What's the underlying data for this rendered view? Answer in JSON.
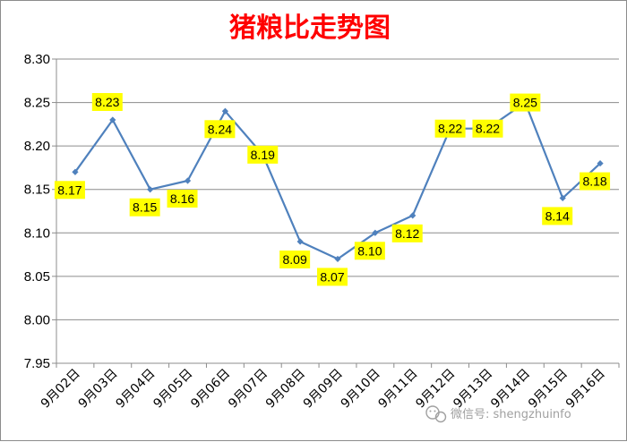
{
  "chart_data": {
    "type": "line",
    "title": "猪粮比走势图",
    "categories": [
      "9月02日",
      "9月03日",
      "9月04日",
      "9月05日",
      "9月06日",
      "9月07日",
      "9月08日",
      "9月09日",
      "9月10日",
      "9月11日",
      "9月12日",
      "9月13日",
      "9月14日",
      "9月15日",
      "9月16日"
    ],
    "series": [
      {
        "values": [
          8.17,
          8.23,
          8.15,
          8.16,
          8.24,
          8.19,
          8.09,
          8.07,
          8.1,
          8.12,
          8.22,
          8.22,
          8.25,
          8.14,
          8.18
        ]
      }
    ],
    "data_labels": [
      "8.17",
      "8.23",
      "8.15",
      "8.16",
      "8.24",
      "8.19",
      "8.09",
      "8.07",
      "8.10",
      "8.12",
      "8.22",
      "8.22",
      "8.25",
      "8.14",
      "8.18"
    ],
    "ylim": [
      7.95,
      8.3
    ],
    "yticks": [
      "7.95",
      "8.00",
      "8.05",
      "8.10",
      "8.15",
      "8.20",
      "8.25",
      "8.30"
    ],
    "grid": true,
    "colors": {
      "line": "#4f81bd",
      "label_bg": "#ffff00",
      "title": "#ff0000",
      "grid": "#8c8c8c"
    }
  },
  "watermark": {
    "icon": "wechat-icon",
    "text": "微信号: shengzhuinfo"
  }
}
